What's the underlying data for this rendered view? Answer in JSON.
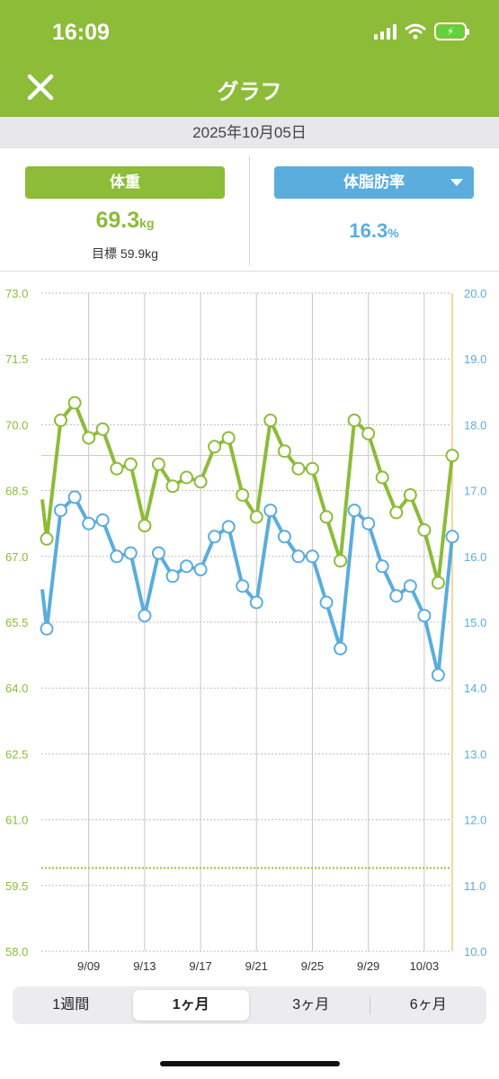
{
  "status_bar": {
    "time": "16:09"
  },
  "nav": {
    "title": "グラフ",
    "close_icon": "close-icon"
  },
  "date": "2025年10月05日",
  "summary": {
    "weight": {
      "label": "体重",
      "value": "69.3",
      "unit": "kg",
      "goal_label": "目標",
      "goal_value": "59.9kg"
    },
    "fat": {
      "label": "体脂肪率",
      "value": "16.3",
      "unit": "%"
    }
  },
  "colors": {
    "weight": "#8cbc38",
    "fat": "#5aaddd",
    "header": "#8cbc38"
  },
  "chart_data": {
    "type": "line",
    "x": [
      "9/06",
      "9/07",
      "9/08",
      "9/09",
      "9/10",
      "9/11",
      "9/12",
      "9/13",
      "9/14",
      "9/15",
      "9/16",
      "9/17",
      "9/18",
      "9/19",
      "9/20",
      "9/21",
      "9/22",
      "9/23",
      "9/24",
      "9/25",
      "9/26",
      "9/27",
      "9/28",
      "9/29",
      "9/30",
      "10/01",
      "10/02",
      "10/03",
      "10/04",
      "10/05"
    ],
    "x_tick_labels": [
      "9/09",
      "9/13",
      "9/17",
      "9/21",
      "9/25",
      "9/29",
      "10/03"
    ],
    "series": [
      {
        "axis": "left",
        "values": [
          67.4,
          70.1,
          70.5,
          69.7,
          69.9,
          69.0,
          69.1,
          67.7,
          69.1,
          68.6,
          68.8,
          68.7,
          69.5,
          69.7,
          68.4,
          67.9,
          70.1,
          69.4,
          69.0,
          69.0,
          67.9,
          66.9,
          70.1,
          69.8,
          68.8,
          68.0,
          68.4,
          67.6,
          66.4,
          69.3
        ]
      },
      {
        "axis": "right",
        "values": [
          14.9,
          16.7,
          16.9,
          16.5,
          16.55,
          16.0,
          16.05,
          15.1,
          16.05,
          15.7,
          15.85,
          15.8,
          16.3,
          16.45,
          15.55,
          15.3,
          16.7,
          16.3,
          16.0,
          16.0,
          15.3,
          14.6,
          16.7,
          16.5,
          15.85,
          15.4,
          15.55,
          15.1,
          14.2,
          16.3
        ]
      }
    ],
    "y_left": {
      "ylim": [
        58.0,
        73.0
      ],
      "ticks": [
        "73.0",
        "71.5",
        "70.0",
        "68.5",
        "67.0",
        "65.5",
        "64.0",
        "62.5",
        "61.0",
        "59.5",
        "58.0"
      ]
    },
    "y_right": {
      "ylim": [
        10.0,
        20.0
      ],
      "ticks": [
        "20.0",
        "19.0",
        "18.0",
        "17.0",
        "16.0",
        "15.0",
        "14.0",
        "13.0",
        "12.0",
        "11.0",
        "10.0"
      ]
    },
    "reference_lines": {
      "current_weight": 69.3,
      "goal_weight": 59.9
    },
    "grid": true,
    "legend": "none"
  },
  "period_tabs": [
    {
      "label": "1週間",
      "active": false
    },
    {
      "label": "1ヶ月",
      "active": true
    },
    {
      "label": "3ヶ月",
      "active": false
    },
    {
      "label": "6ヶ月",
      "active": false
    }
  ]
}
